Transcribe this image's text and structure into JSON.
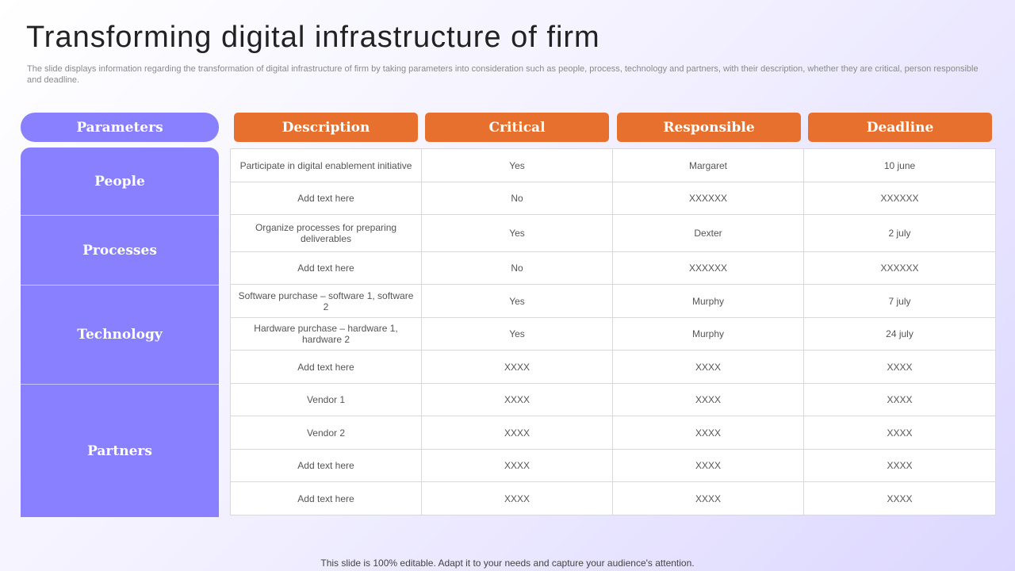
{
  "slide": {
    "title": "Transforming digital infrastructure of firm",
    "subtitle": "The slide displays information regarding the transformation of digital infrastructure of firm by taking parameters into consideration such as people, process, technology and partners, with their description, whether they are critical, person responsible and deadline.",
    "footer": "This slide is 100% editable. Adapt it to your needs and capture your audience's attention."
  },
  "headers": {
    "parameters": "Parameters",
    "description": "Description",
    "critical": "Critical",
    "responsible": "Responsible",
    "deadline": "Deadline"
  },
  "parameters": [
    "People",
    "Processes",
    "Technology",
    "Partners"
  ],
  "rows": [
    {
      "description": "Participate in digital enablement initiative",
      "critical": "Yes",
      "responsible": "Margaret",
      "deadline": "10 june"
    },
    {
      "description": "Add text here",
      "critical": "No",
      "responsible": "XXXXXX",
      "deadline": "XXXXXX"
    },
    {
      "description": "Organize processes for preparing deliverables",
      "critical": "Yes",
      "responsible": "Dexter",
      "deadline": "2 july"
    },
    {
      "description": "Add text here",
      "critical": "No",
      "responsible": "XXXXXX",
      "deadline": "XXXXXX"
    },
    {
      "description": "Software purchase – software 1, software 2",
      "critical": "Yes",
      "responsible": "Murphy",
      "deadline": "7 july"
    },
    {
      "description": "Hardware purchase – hardware 1, hardware 2",
      "critical": "Yes",
      "responsible": "Murphy",
      "deadline": "24 july"
    },
    {
      "description": "Add text here",
      "critical": "XXXX",
      "responsible": "XXXX",
      "deadline": "XXXX"
    },
    {
      "description": "Vendor 1",
      "critical": "XXXX",
      "responsible": "XXXX",
      "deadline": "XXXX"
    },
    {
      "description": "Vendor 2",
      "critical": "XXXX",
      "responsible": "XXXX",
      "deadline": "XXXX"
    },
    {
      "description": "Add text here",
      "critical": "XXXX",
      "responsible": "XXXX",
      "deadline": "XXXX"
    },
    {
      "description": "Add text here",
      "critical": "XXXX",
      "responsible": "XXXX",
      "deadline": "XXXX"
    }
  ],
  "colors": {
    "parameter_fill": "#8880ff",
    "header_fill": "#e8702e"
  }
}
